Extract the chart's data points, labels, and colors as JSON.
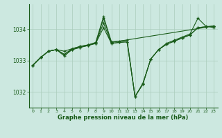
{
  "bg_color": "#cce8e0",
  "line_color": "#1a5c1a",
  "grid_color": "#aaccbb",
  "xlabel": "Graphe pression niveau de la mer (hPa)",
  "xlim": [
    -0.5,
    23.5
  ],
  "ylim": [
    1031.5,
    1034.8
  ],
  "yticks": [
    1032,
    1033,
    1034
  ],
  "xticks": [
    0,
    1,
    2,
    3,
    4,
    5,
    6,
    7,
    8,
    9,
    10,
    11,
    12,
    13,
    14,
    15,
    16,
    17,
    18,
    19,
    20,
    21,
    22,
    23
  ],
  "series": [
    {
      "x": [
        0,
        1,
        2,
        3,
        4,
        5,
        6,
        7,
        8,
        9,
        10,
        11,
        12,
        13,
        14,
        15,
        16,
        17,
        18,
        19,
        20,
        21,
        22,
        23
      ],
      "y": [
        1032.85,
        1033.1,
        1033.3,
        1033.35,
        1033.3,
        1033.38,
        1033.45,
        1033.5,
        1033.55,
        1034.05,
        1033.55,
        1033.58,
        1033.6,
        1031.85,
        1032.25,
        1033.05,
        1033.35,
        1033.52,
        1033.62,
        1033.72,
        1033.82,
        1034.05,
        1034.08,
        1034.1
      ]
    },
    {
      "x": [
        0,
        1,
        2,
        3,
        4,
        5,
        6,
        7,
        8,
        9,
        10,
        11,
        12,
        13,
        14,
        15,
        16,
        17,
        18,
        19,
        20,
        21,
        22,
        23
      ],
      "y": [
        1032.85,
        1033.1,
        1033.3,
        1033.35,
        1033.2,
        1033.35,
        1033.42,
        1033.48,
        1033.55,
        1034.2,
        1033.55,
        1033.58,
        1033.6,
        1031.85,
        1032.25,
        1033.05,
        1033.35,
        1033.52,
        1033.62,
        1033.72,
        1033.82,
        1034.05,
        1034.08,
        1034.1
      ]
    },
    {
      "x": [
        0,
        1,
        2,
        3,
        4,
        5,
        6,
        7,
        8,
        9,
        10,
        23
      ],
      "y": [
        1032.85,
        1033.1,
        1033.3,
        1033.35,
        1033.15,
        1033.35,
        1033.42,
        1033.48,
        1033.55,
        1034.35,
        1033.58,
        1034.1
      ]
    },
    {
      "x": [
        0,
        1,
        2,
        3,
        4,
        5,
        6,
        7,
        8,
        9,
        10,
        11,
        12,
        13,
        14,
        15,
        16,
        17,
        18,
        19,
        20,
        21,
        22,
        23
      ],
      "y": [
        1032.85,
        1033.1,
        1033.3,
        1033.35,
        1033.2,
        1033.38,
        1033.45,
        1033.5,
        1033.58,
        1034.4,
        1033.6,
        1033.62,
        1033.65,
        1031.85,
        1032.28,
        1033.05,
        1033.35,
        1033.55,
        1033.65,
        1033.75,
        1033.85,
        1034.35,
        1034.1,
        1034.05
      ]
    }
  ]
}
